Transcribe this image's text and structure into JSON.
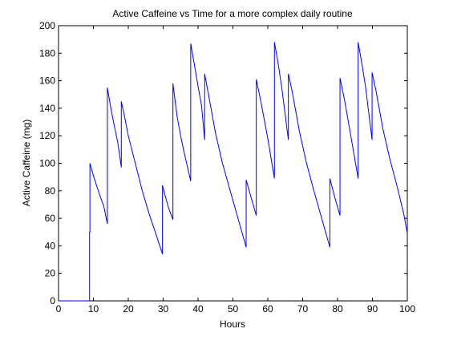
{
  "chart_data": {
    "type": "line",
    "title": "Active Caffeine vs Time for a more complex daily routine",
    "xlabel": "Hours",
    "ylabel": "Active Caffeine (mg)",
    "xlim": [
      0,
      100
    ],
    "ylim": [
      0,
      200
    ],
    "x_ticks": [
      0,
      10,
      20,
      30,
      40,
      50,
      60,
      70,
      80,
      90,
      100
    ],
    "y_ticks": [
      0,
      20,
      40,
      60,
      80,
      100,
      120,
      140,
      160,
      180,
      200
    ],
    "grid": false,
    "legend": "none",
    "series": [
      {
        "color": "#0000ff",
        "points": [
          [
            0,
            0
          ],
          [
            8.9,
            0
          ],
          [
            8.9,
            50
          ],
          [
            9,
            50
          ],
          [
            9,
            100
          ],
          [
            10,
            91
          ],
          [
            11,
            83
          ],
          [
            12,
            75.5
          ],
          [
            13,
            68.5
          ],
          [
            14,
            56
          ],
          [
            14,
            155
          ],
          [
            15,
            140
          ],
          [
            16,
            127
          ],
          [
            17,
            115
          ],
          [
            18,
            97
          ],
          [
            18,
            145
          ],
          [
            19,
            133
          ],
          [
            20,
            120
          ],
          [
            22,
            100
          ],
          [
            24,
            80
          ],
          [
            26,
            63
          ],
          [
            28,
            48
          ],
          [
            29.8,
            34
          ],
          [
            29.8,
            84
          ],
          [
            30.5,
            77
          ],
          [
            31.5,
            68
          ],
          [
            32.8,
            59
          ],
          [
            32.8,
            158
          ],
          [
            34,
            134
          ],
          [
            35,
            120
          ],
          [
            36,
            108
          ],
          [
            37,
            97
          ],
          [
            37.9,
            87
          ],
          [
            37.9,
            187
          ],
          [
            39,
            171
          ],
          [
            40,
            156
          ],
          [
            41,
            142
          ],
          [
            41.9,
            117
          ],
          [
            41.9,
            165
          ],
          [
            43,
            150
          ],
          [
            45,
            122
          ],
          [
            47,
            100
          ],
          [
            49,
            82
          ],
          [
            51,
            64
          ],
          [
            53.8,
            39
          ],
          [
            53.8,
            88
          ],
          [
            55,
            77
          ],
          [
            56.7,
            62
          ],
          [
            56.7,
            161
          ],
          [
            58,
            145
          ],
          [
            60,
            118
          ],
          [
            61.9,
            89
          ],
          [
            61.9,
            188
          ],
          [
            63,
            172
          ],
          [
            64,
            155
          ],
          [
            65.9,
            117
          ],
          [
            65.9,
            165
          ],
          [
            67,
            152
          ],
          [
            69,
            124
          ],
          [
            71,
            101
          ],
          [
            73,
            82
          ],
          [
            75,
            64
          ],
          [
            77.8,
            39
          ],
          [
            77.8,
            89
          ],
          [
            79,
            77
          ],
          [
            80.7,
            62
          ],
          [
            80.7,
            162
          ],
          [
            82,
            146
          ],
          [
            84,
            117
          ],
          [
            85.9,
            89
          ],
          [
            85.9,
            188
          ],
          [
            87,
            172
          ],
          [
            88,
            156
          ],
          [
            89.9,
            117
          ],
          [
            89.9,
            166
          ],
          [
            91,
            153
          ],
          [
            93,
            125
          ],
          [
            95,
            103
          ],
          [
            97,
            84
          ],
          [
            99,
            63
          ],
          [
            100,
            49
          ]
        ]
      }
    ]
  }
}
